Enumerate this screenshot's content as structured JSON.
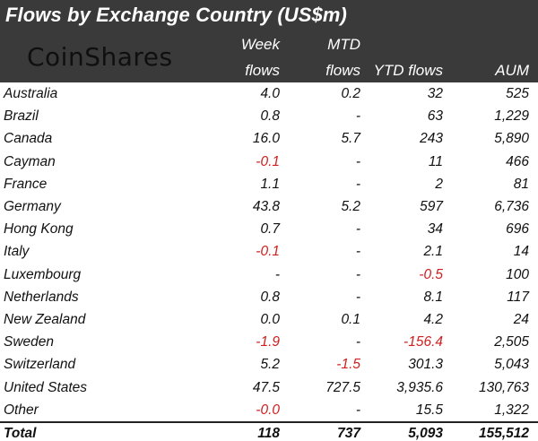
{
  "header": {
    "title": "Flows by Exchange Country (US$m)",
    "logo": "CoinShares",
    "columns": [
      {
        "line1": "Week",
        "line2": "flows"
      },
      {
        "line1": "MTD",
        "line2": "flows"
      },
      {
        "line1": "",
        "line2": "YTD flows"
      },
      {
        "line1": "",
        "line2": "AUM"
      }
    ]
  },
  "colors": {
    "header_bg": "#3a3a3a",
    "negative": "#d01f1f"
  },
  "rows": [
    {
      "country": "Australia",
      "week": "4.0",
      "mtd": "0.2",
      "ytd": "32",
      "aum": "525"
    },
    {
      "country": "Brazil",
      "week": "0.8",
      "mtd": "-",
      "ytd": "63",
      "aum": "1,229"
    },
    {
      "country": "Canada",
      "week": "16.0",
      "mtd": "5.7",
      "ytd": "243",
      "aum": "5,890"
    },
    {
      "country": "Cayman",
      "week": "-0.1",
      "mtd": "-",
      "ytd": "11",
      "aum": "466"
    },
    {
      "country": "France",
      "week": "1.1",
      "mtd": "-",
      "ytd": "2",
      "aum": "81"
    },
    {
      "country": "Germany",
      "week": "43.8",
      "mtd": "5.2",
      "ytd": "597",
      "aum": "6,736"
    },
    {
      "country": "Hong Kong",
      "week": "0.7",
      "mtd": "-",
      "ytd": "34",
      "aum": "696"
    },
    {
      "country": "Italy",
      "week": "-0.1",
      "mtd": "-",
      "ytd": "2.1",
      "aum": "14"
    },
    {
      "country": "Luxembourg",
      "week": "-",
      "mtd": "-",
      "ytd": "-0.5",
      "aum": "100"
    },
    {
      "country": "Netherlands",
      "week": "0.8",
      "mtd": "-",
      "ytd": "8.1",
      "aum": "117"
    },
    {
      "country": "New Zealand",
      "week": "0.0",
      "mtd": "0.1",
      "ytd": "4.2",
      "aum": "24"
    },
    {
      "country": "Sweden",
      "week": "-1.9",
      "mtd": "-",
      "ytd": "-156.4",
      "aum": "2,505"
    },
    {
      "country": "Switzerland",
      "week": "5.2",
      "mtd": "-1.5",
      "ytd": "301.3",
      "aum": "5,043"
    },
    {
      "country": "United States",
      "week": "47.5",
      "mtd": "727.5",
      "ytd": "3,935.6",
      "aum": "130,763"
    },
    {
      "country": "Other",
      "week": "-0.0",
      "mtd": "-",
      "ytd": "15.5",
      "aum": "1,322"
    }
  ],
  "total": {
    "label": "Total",
    "week": "118",
    "mtd": "737",
    "ytd": "5,093",
    "aum": "155,512"
  }
}
